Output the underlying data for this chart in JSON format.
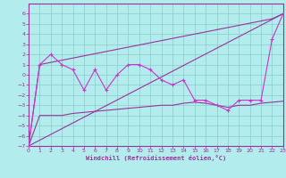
{
  "xlabel": "Windchill (Refroidissement éolien,°C)",
  "xlim": [
    0,
    23
  ],
  "ylim": [
    -7,
    7
  ],
  "yticks": [
    -7,
    -6,
    -5,
    -4,
    -3,
    -2,
    -1,
    0,
    1,
    2,
    3,
    4,
    5,
    6
  ],
  "xticks": [
    0,
    1,
    2,
    3,
    4,
    5,
    6,
    7,
    8,
    9,
    10,
    11,
    12,
    13,
    14,
    15,
    16,
    17,
    18,
    19,
    20,
    21,
    22,
    23
  ],
  "bg_color": "#b3ecec",
  "line_color": "#993399",
  "line_color2": "#cc33cc",
  "grid_color": "#88cccc",
  "line1_x": [
    0,
    1,
    2,
    3,
    4,
    5,
    6,
    7,
    8,
    9,
    10,
    11,
    12,
    13,
    14,
    15,
    16,
    17,
    18,
    19,
    20,
    21,
    22,
    23
  ],
  "line1_y": [
    -7.0,
    1.0,
    2.0,
    1.0,
    0.5,
    -1.5,
    0.5,
    -1.5,
    0.0,
    1.0,
    1.0,
    0.5,
    -0.5,
    -1.0,
    -0.5,
    -2.5,
    -2.5,
    -3.0,
    -3.5,
    -2.5,
    -2.5,
    -2.5,
    3.5,
    6.0
  ],
  "line2_x": [
    0,
    1,
    2,
    3,
    4,
    5,
    6,
    7,
    8,
    9,
    10,
    11,
    12,
    13,
    14,
    15,
    16,
    17,
    18,
    19,
    20,
    21,
    22,
    23
  ],
  "line2_y": [
    -7.0,
    -4.0,
    -4.0,
    -4.0,
    -3.8,
    -3.7,
    -3.6,
    -3.5,
    -3.4,
    -3.3,
    -3.2,
    -3.1,
    -3.0,
    -3.0,
    -2.8,
    -2.7,
    -2.8,
    -3.0,
    -3.2,
    -3.0,
    -3.0,
    -2.8,
    -2.7,
    -2.6
  ],
  "line3_x": [
    0,
    23
  ],
  "line3_y": [
    -7.0,
    6.0
  ],
  "line4_x": [
    0,
    1,
    22,
    23
  ],
  "line4_y": [
    -7.0,
    1.0,
    5.5,
    6.0
  ],
  "spine_color": "#993399"
}
